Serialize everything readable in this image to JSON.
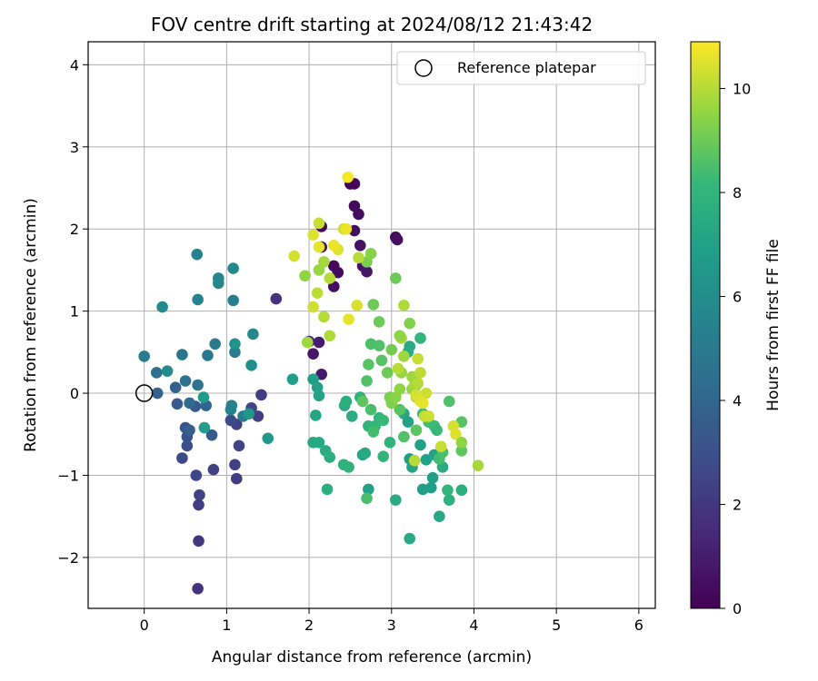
{
  "chart_data": {
    "type": "scatter",
    "title": "FOV centre drift starting at 2024/08/12 21:43:42",
    "xlabel": "Angular distance from reference (arcmin)",
    "ylabel": "Rotation from reference (arcmin)",
    "xlim": [
      -0.68,
      6.2
    ],
    "ylim": [
      -2.62,
      4.28
    ],
    "xticks": [
      0,
      1,
      2,
      3,
      4,
      5,
      6
    ],
    "xtick_labels": [
      "0",
      "1",
      "2",
      "3",
      "4",
      "5",
      "6"
    ],
    "yticks": [
      -2,
      -1,
      0,
      1,
      2,
      3,
      4
    ],
    "ytick_labels": [
      "−2",
      "−1",
      "0",
      "1",
      "2",
      "3",
      "4"
    ],
    "grid": true,
    "legend": {
      "position": "upper right",
      "entries": [
        "Reference platepar"
      ]
    },
    "reference_point": {
      "label": "Reference platepar",
      "x": 0,
      "y": 0,
      "marker": "hollow circle"
    },
    "colorbar": {
      "label": "Hours from first FF file",
      "cmap": "viridis",
      "range": [
        0,
        10.9
      ],
      "ticks": [
        0,
        2,
        4,
        6,
        8,
        10
      ],
      "tick_labels": [
        "0",
        "2",
        "4",
        "6",
        "8",
        "10"
      ]
    },
    "points": [
      [
        2.5,
        2.55,
        0.1
      ],
      [
        2.55,
        2.55,
        0.2
      ],
      [
        2.55,
        2.28,
        0.3
      ],
      [
        2.6,
        2.18,
        0.4
      ],
      [
        2.55,
        1.98,
        0.5
      ],
      [
        2.62,
        1.8,
        0.6
      ],
      [
        2.65,
        1.55,
        0.7
      ],
      [
        2.7,
        1.48,
        0.8
      ],
      [
        3.05,
        1.9,
        0.2
      ],
      [
        3.07,
        1.87,
        0.5
      ],
      [
        2.3,
        1.55,
        0.3
      ],
      [
        2.35,
        1.47,
        0.4
      ],
      [
        2.3,
        1.3,
        0.5
      ],
      [
        2.15,
        2.03,
        0.3
      ],
      [
        2.15,
        1.78,
        0.5
      ],
      [
        2.05,
        0.48,
        0.8
      ],
      [
        2.12,
        0.62,
        1.0
      ],
      [
        2.15,
        0.23,
        0.9
      ],
      [
        2.0,
        0.63,
        1.2
      ],
      [
        1.6,
        1.15,
        1.8
      ],
      [
        1.42,
        -0.02,
        2.2
      ],
      [
        1.38,
        -0.28,
        2.3
      ],
      [
        1.12,
        -0.38,
        2.4
      ],
      [
        1.15,
        -0.64,
        2.5
      ],
      [
        1.1,
        -0.87,
        2.3
      ],
      [
        1.12,
        -1.04,
        2.2
      ],
      [
        1.3,
        -0.18,
        2.6
      ],
      [
        1.05,
        -0.33,
        2.7
      ],
      [
        0.84,
        -0.93,
        2.4
      ],
      [
        0.66,
        -1.8,
        2.0
      ],
      [
        0.65,
        -2.38,
        1.8
      ],
      [
        0.66,
        -1.36,
        2.2
      ],
      [
        0.67,
        -1.24,
        2.4
      ],
      [
        0.63,
        -1.0,
        2.6
      ],
      [
        0.46,
        -0.79,
        2.8
      ],
      [
        0.52,
        -0.64,
        3.0
      ],
      [
        0.52,
        -0.53,
        3.1
      ],
      [
        0.5,
        -0.42,
        3.2
      ],
      [
        0.82,
        -0.51,
        3.4
      ],
      [
        0.62,
        -0.16,
        3.5
      ],
      [
        0.55,
        -0.45,
        3.6
      ],
      [
        0.4,
        -0.13,
        3.5
      ],
      [
        0.38,
        0.07,
        3.7
      ],
      [
        0.16,
        0.0,
        3.8
      ],
      [
        0.75,
        -0.15,
        3.9
      ],
      [
        0.55,
        -0.12,
        4.2
      ],
      [
        0.15,
        0.25,
        4.4
      ],
      [
        0.5,
        0.15,
        4.5
      ],
      [
        0.65,
        0.1,
        4.6
      ],
      [
        0.46,
        0.47,
        4.8
      ],
      [
        0.77,
        0.46,
        4.9
      ],
      [
        0.86,
        0.6,
        5.0
      ],
      [
        1.1,
        0.5,
        5.1
      ],
      [
        1.08,
        1.13,
        5.3
      ],
      [
        0.65,
        1.14,
        5.4
      ],
      [
        0.64,
        1.69,
        5.5
      ],
      [
        0.9,
        1.4,
        5.6
      ],
      [
        0.9,
        1.34,
        5.7
      ],
      [
        1.08,
        1.52,
        5.8
      ],
      [
        1.2,
        -0.28,
        5.2
      ],
      [
        1.06,
        -0.15,
        5.5
      ],
      [
        1.05,
        -0.2,
        5.4
      ],
      [
        0.28,
        0.27,
        5.9
      ],
      [
        0.22,
        1.05,
        5.9
      ],
      [
        0.0,
        0.45,
        5.2
      ],
      [
        1.1,
        0.6,
        6.3
      ],
      [
        1.3,
        0.34,
        6.1
      ],
      [
        1.32,
        0.72,
        5.8
      ],
      [
        1.27,
        -0.25,
        6.4
      ],
      [
        1.5,
        -0.55,
        6.5
      ],
      [
        0.72,
        -0.05,
        6.6
      ],
      [
        0.73,
        -0.42,
        6.7
      ],
      [
        1.8,
        0.17,
        6.8
      ],
      [
        2.05,
        0.17,
        6.9
      ],
      [
        2.1,
        0.07,
        7.0
      ],
      [
        2.12,
        -0.03,
        7.1
      ],
      [
        2.08,
        -0.27,
        7.2
      ],
      [
        2.05,
        -0.6,
        7.3
      ],
      [
        2.12,
        -0.6,
        7.4
      ],
      [
        2.2,
        -0.7,
        7.5
      ],
      [
        2.25,
        -0.78,
        7.6
      ],
      [
        2.22,
        -1.17,
        7.7
      ],
      [
        2.42,
        -0.87,
        7.8
      ],
      [
        2.48,
        -0.9,
        7.9
      ],
      [
        2.43,
        -0.15,
        7.6
      ],
      [
        2.45,
        -0.1,
        7.7
      ],
      [
        2.52,
        -0.28,
        7.5
      ],
      [
        2.62,
        -0.05,
        7.8
      ],
      [
        2.65,
        -0.75,
        7.2
      ],
      [
        2.68,
        -0.73,
        7.4
      ],
      [
        2.72,
        -1.17,
        7.0
      ],
      [
        2.7,
        -1.28,
        8.5
      ],
      [
        2.72,
        -0.4,
        7.9
      ],
      [
        2.8,
        -0.4,
        8.0
      ],
      [
        2.85,
        -0.3,
        8.1
      ],
      [
        2.9,
        -0.33,
        8.2
      ],
      [
        2.9,
        -0.77,
        8.0
      ],
      [
        2.98,
        -0.6,
        7.9
      ],
      [
        3.05,
        -1.3,
        7.5
      ],
      [
        3.15,
        -0.25,
        7.3
      ],
      [
        3.2,
        -0.35,
        7.0
      ],
      [
        3.22,
        -0.8,
        6.8
      ],
      [
        3.25,
        -0.9,
        7.2
      ],
      [
        3.22,
        -1.77,
        7.4
      ],
      [
        3.35,
        -0.63,
        7.0
      ],
      [
        3.38,
        -1.17,
        6.9
      ],
      [
        3.42,
        -0.81,
        7.0
      ],
      [
        3.48,
        -1.15,
        6.8
      ],
      [
        3.5,
        -1.03,
        6.9
      ],
      [
        3.52,
        -0.75,
        7.1
      ],
      [
        3.58,
        -1.5,
        7.3
      ],
      [
        3.62,
        -0.9,
        7.5
      ],
      [
        3.68,
        -1.18,
        8.0
      ],
      [
        3.7,
        -1.3,
        7.8
      ],
      [
        3.85,
        -1.18,
        7.7
      ],
      [
        3.22,
        0.57,
        7.4
      ],
      [
        3.2,
        0.5,
        7.6
      ],
      [
        3.35,
        0.67,
        8.0
      ],
      [
        3.3,
        0.1,
        8.2
      ],
      [
        3.38,
        -0.25,
        8.3
      ],
      [
        3.45,
        -0.35,
        8.4
      ],
      [
        3.52,
        -0.4,
        8.3
      ],
      [
        3.55,
        -0.45,
        8.2
      ],
      [
        3.58,
        -0.8,
        8.4
      ],
      [
        3.62,
        -0.72,
        8.5
      ],
      [
        3.7,
        -0.1,
        8.6
      ],
      [
        3.85,
        -0.35,
        8.7
      ],
      [
        3.85,
        -0.7,
        8.8
      ],
      [
        3.15,
        -0.53,
        8.6
      ],
      [
        3.1,
        -0.2,
        8.7
      ],
      [
        3.3,
        -0.45,
        8.8
      ],
      [
        2.78,
        -0.47,
        8.4
      ],
      [
        2.75,
        -0.2,
        8.5
      ],
      [
        2.7,
        0.15,
        8.6
      ],
      [
        2.72,
        0.35,
        8.7
      ],
      [
        2.65,
        -0.1,
        8.8
      ],
      [
        2.75,
        0.6,
        8.5
      ],
      [
        2.85,
        0.58,
        8.6
      ],
      [
        2.88,
        0.4,
        8.7
      ],
      [
        2.85,
        0.87,
        9.0
      ],
      [
        2.95,
        0.25,
        9.0
      ],
      [
        3.0,
        0.53,
        9.1
      ],
      [
        2.98,
        -0.05,
        9.2
      ],
      [
        3.0,
        -0.12,
        9.3
      ],
      [
        3.05,
        -0.05,
        9.4
      ],
      [
        3.1,
        0.05,
        9.5
      ],
      [
        3.12,
        0.25,
        9.6
      ],
      [
        3.15,
        0.45,
        9.7
      ],
      [
        3.12,
        0.67,
        9.8
      ],
      [
        3.15,
        1.07,
        9.9
      ],
      [
        3.22,
        0.85,
        9.3
      ],
      [
        3.25,
        0.05,
        9.6
      ],
      [
        3.25,
        0.2,
        9.7
      ],
      [
        3.28,
        0.1,
        9.8
      ],
      [
        3.3,
        -0.05,
        9.9
      ],
      [
        3.32,
        0.12,
        10.0
      ],
      [
        3.35,
        0.25,
        10.1
      ],
      [
        3.32,
        0.42,
        10.2
      ],
      [
        3.42,
        0.0,
        10.3
      ],
      [
        3.3,
        -0.02,
        10.4
      ],
      [
        3.35,
        -0.1,
        10.5
      ],
      [
        3.38,
        -0.12,
        10.6
      ],
      [
        3.4,
        -0.28,
        10.2
      ],
      [
        3.45,
        -0.28,
        10.3
      ],
      [
        3.28,
        -0.82,
        10.0
      ],
      [
        3.6,
        -0.65,
        10.2
      ],
      [
        3.75,
        -0.4,
        10.4
      ],
      [
        3.78,
        -0.5,
        10.5
      ],
      [
        3.85,
        -0.6,
        9.5
      ],
      [
        4.05,
        -0.88,
        9.8
      ],
      [
        3.05,
        1.4,
        9.0
      ],
      [
        3.1,
        0.7,
        9.5
      ],
      [
        3.08,
        0.3,
        10.0
      ],
      [
        2.78,
        1.08,
        9.0
      ],
      [
        2.7,
        1.6,
        9.2
      ],
      [
        2.75,
        1.7,
        9.4
      ],
      [
        2.6,
        1.65,
        10.0
      ],
      [
        2.58,
        1.07,
        10.4
      ],
      [
        2.48,
        0.9,
        10.6
      ],
      [
        2.42,
        2.0,
        10.3
      ],
      [
        2.45,
        2.0,
        10.7
      ],
      [
        2.47,
        2.63,
        10.8
      ],
      [
        2.35,
        1.75,
        10.5
      ],
      [
        2.3,
        1.8,
        10.7
      ],
      [
        2.25,
        1.4,
        10.0
      ],
      [
        2.18,
        1.6,
        9.8
      ],
      [
        2.12,
        1.5,
        9.6
      ],
      [
        2.12,
        2.07,
        10.2
      ],
      [
        2.05,
        1.93,
        10.5
      ],
      [
        2.12,
        1.78,
        10.6
      ],
      [
        2.1,
        1.22,
        10.1
      ],
      [
        2.05,
        1.05,
        10.3
      ],
      [
        2.18,
        0.93,
        10.0
      ],
      [
        2.25,
        0.7,
        9.9
      ],
      [
        1.95,
        1.43,
        9.5
      ],
      [
        1.82,
        1.67,
        10.4
      ],
      [
        1.98,
        0.62,
        9.7
      ]
    ]
  }
}
